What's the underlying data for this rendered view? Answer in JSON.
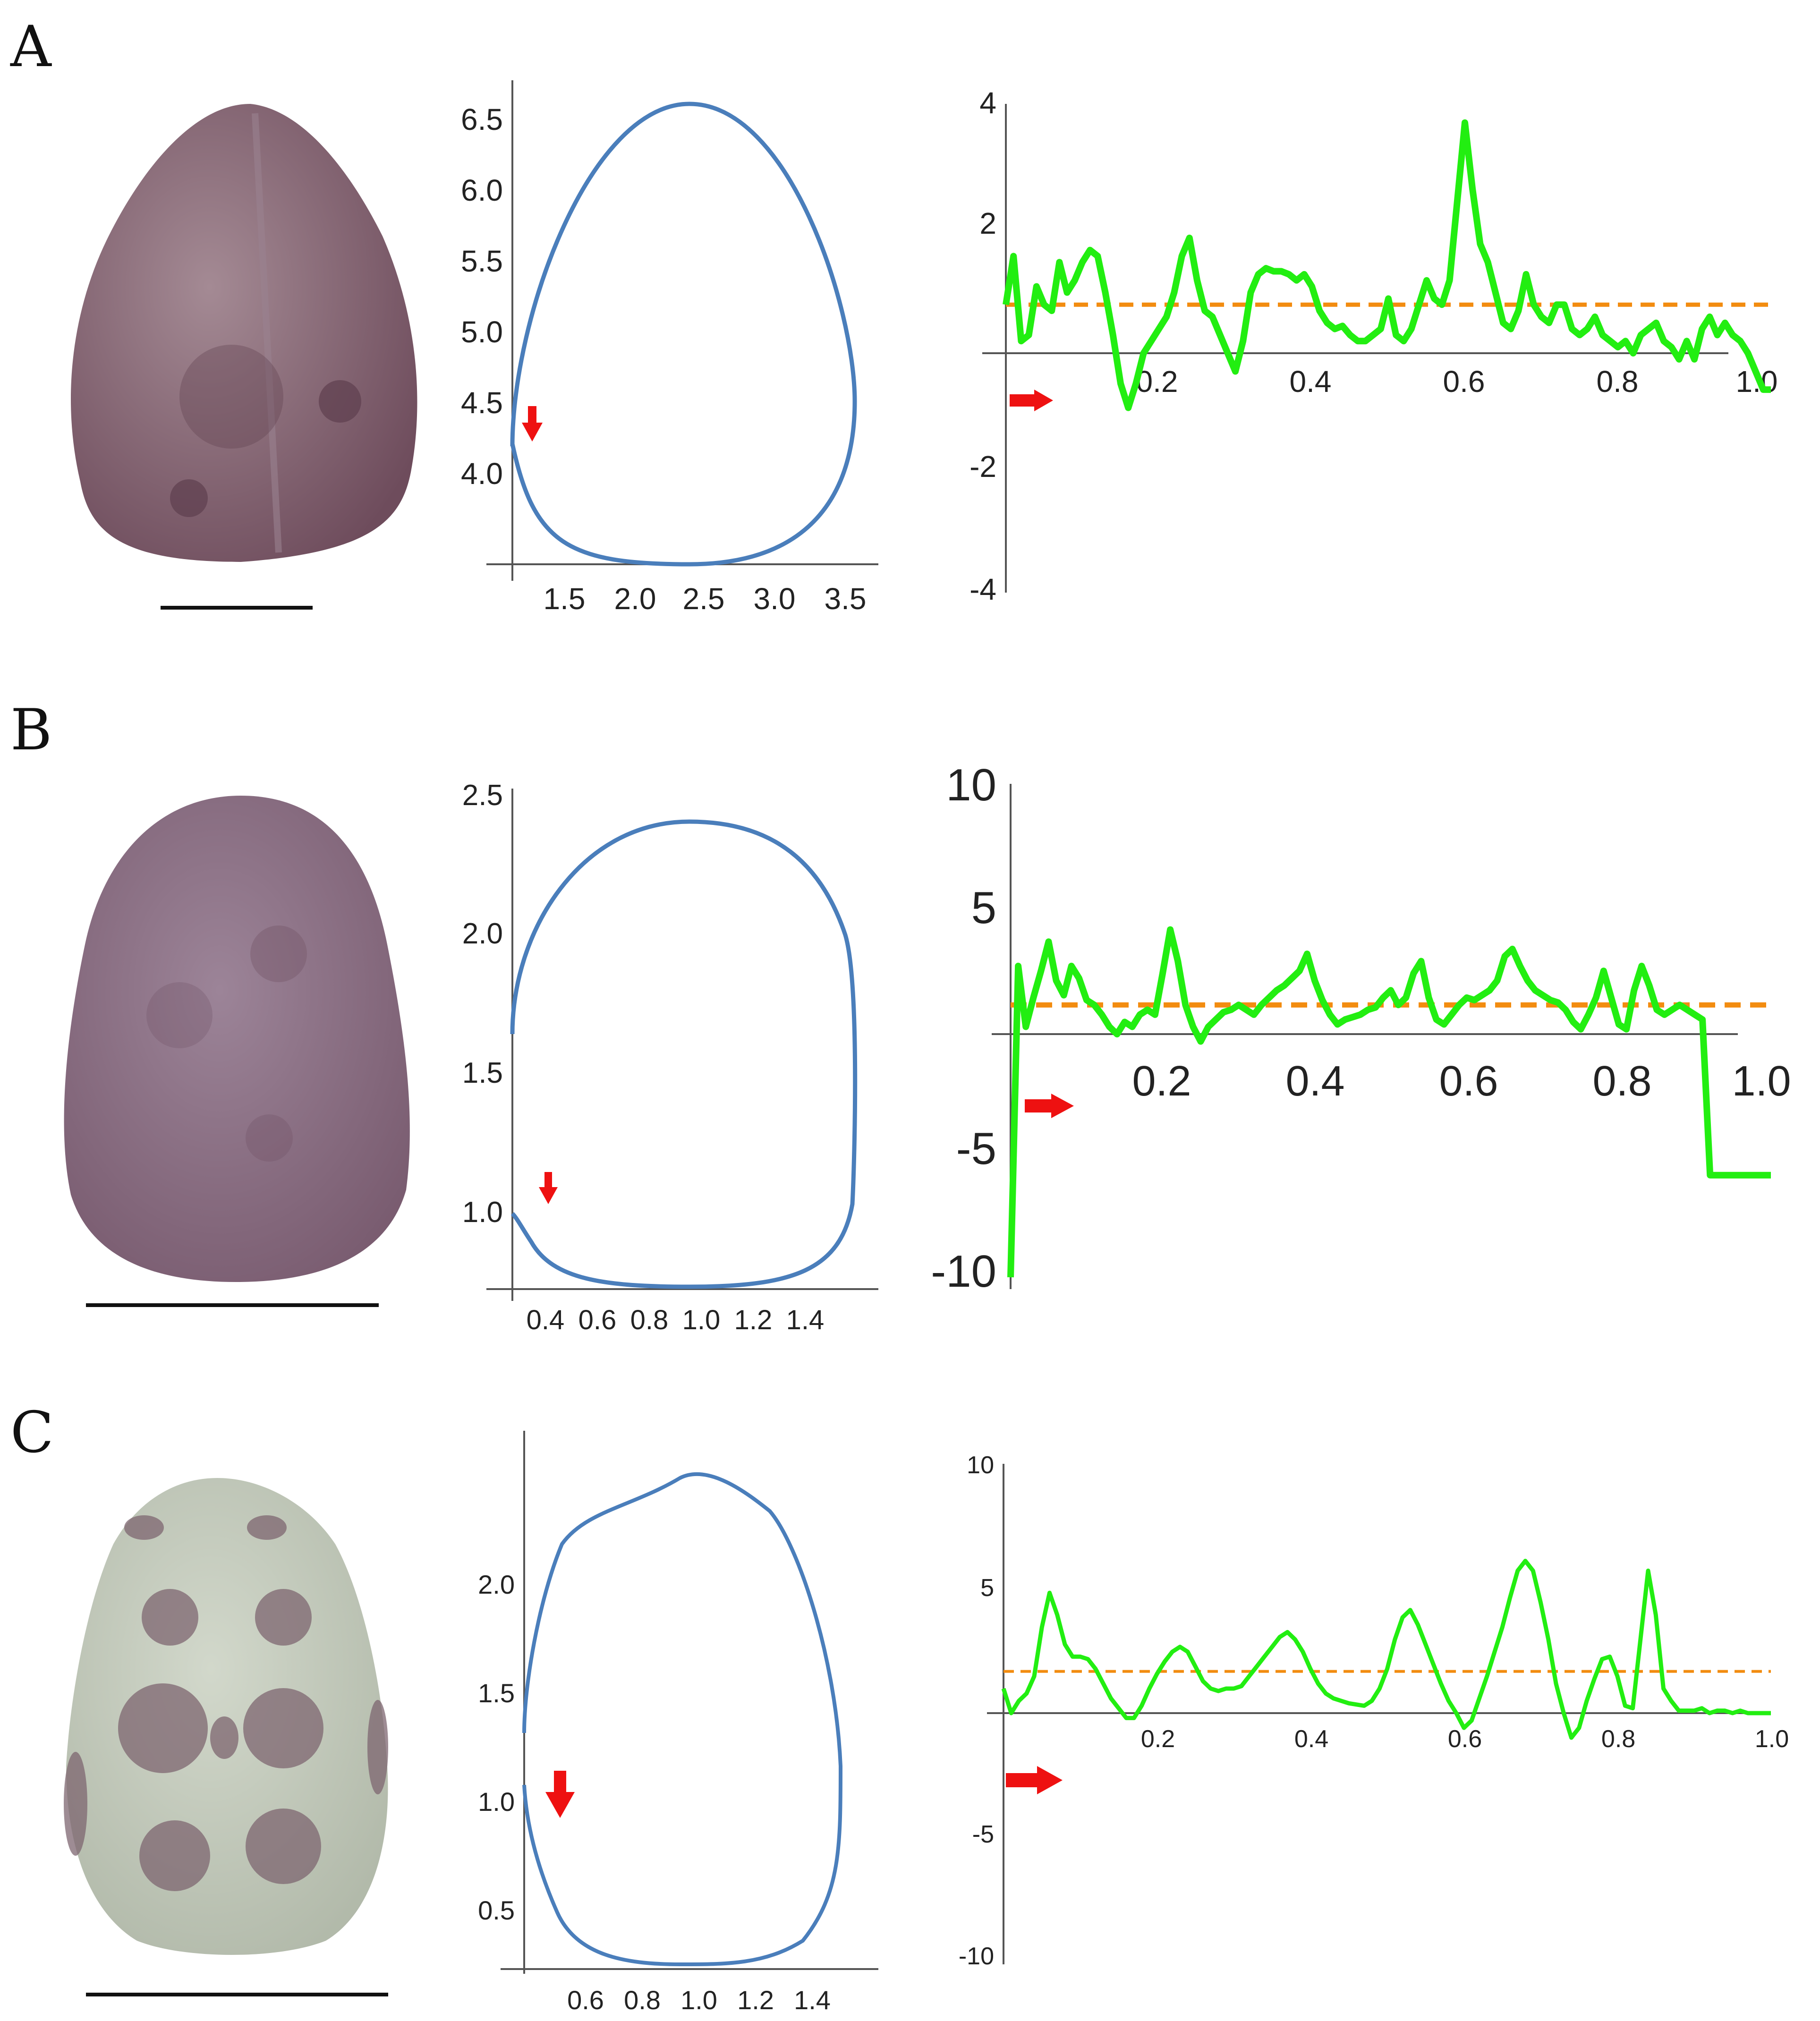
{
  "panels": [
    {
      "letter": "A",
      "seed": {
        "fill": "#8a6a78",
        "spot": "#5e3e4e"
      },
      "outline": {
        "xticks": [
          "1.5",
          "2.0",
          "2.5",
          "3.0",
          "3.5"
        ],
        "yticks": [
          "4.0",
          "4.5",
          "5.0",
          "5.5",
          "6.0",
          "6.5"
        ]
      },
      "profile": {
        "xticks": [
          "0.2",
          "0.4",
          "0.6",
          "0.8",
          "1.0"
        ],
        "yticks": [
          "-4",
          "-2",
          "2",
          "4"
        ],
        "ylim": [
          -4,
          4
        ]
      }
    },
    {
      "letter": "B",
      "seed": {
        "fill": "#8c7288",
        "spot": "#725467"
      },
      "outline": {
        "xticks": [
          "0.4",
          "0.6",
          "0.8",
          "1.0",
          "1.2",
          "1.4"
        ],
        "yticks": [
          "1.0",
          "1.5",
          "2.0",
          "2.5"
        ]
      },
      "profile": {
        "xticks": [
          "0.2",
          "0.4",
          "0.6",
          "0.8",
          "1.0"
        ],
        "yticks": [
          "-10",
          "-5",
          "5",
          "10"
        ],
        "ylim": [
          -10,
          10
        ]
      }
    },
    {
      "letter": "C",
      "seed": {
        "fill": "#c4cbbd",
        "spot": "#7e6670"
      },
      "outline": {
        "xticks": [
          "0.6",
          "0.8",
          "1.0",
          "1.2",
          "1.4"
        ],
        "yticks": [
          "0.5",
          "1.0",
          "1.5",
          "2.0"
        ]
      },
      "profile": {
        "xticks": [
          "0.2",
          "0.4",
          "0.6",
          "0.8",
          "1.0"
        ],
        "yticks": [
          "-10",
          "-5",
          "5",
          "10"
        ],
        "ylim": [
          -10,
          10
        ]
      }
    }
  ],
  "colors": {
    "outline": "#4a7ebb",
    "curvature": "#22ee11",
    "mean_line": "#f28c10",
    "arrow": "#ee1111",
    "axis": "#555555"
  },
  "chart_data": [
    {
      "type": "line",
      "panel": "A",
      "title": "",
      "xlabel": "",
      "ylabel": "",
      "xlim": [
        0,
        1
      ],
      "ylim": [
        -4,
        4
      ],
      "mean_line": 0.8,
      "series": [
        {
          "x": [
            0,
            0.01,
            0.02,
            0.03,
            0.04,
            0.05,
            0.06,
            0.07,
            0.08,
            0.09,
            0.1,
            0.11,
            0.12,
            0.13,
            0.14,
            0.15,
            0.16,
            0.17,
            0.18,
            0.19,
            0.2,
            0.21,
            0.22,
            0.23,
            0.24,
            0.25,
            0.26,
            0.27,
            0.28,
            0.29,
            0.3,
            0.31,
            0.32,
            0.33,
            0.34,
            0.35,
            0.36,
            0.37,
            0.38,
            0.39,
            0.4,
            0.41,
            0.42,
            0.43,
            0.44,
            0.45,
            0.46,
            0.47,
            0.48,
            0.49,
            0.5,
            0.51,
            0.52,
            0.53,
            0.54,
            0.55,
            0.56,
            0.57,
            0.58,
            0.59,
            0.6,
            0.61,
            0.62,
            0.63,
            0.64,
            0.65,
            0.66,
            0.67,
            0.68,
            0.69,
            0.7,
            0.71,
            0.72,
            0.73,
            0.74,
            0.75,
            0.76,
            0.77,
            0.78,
            0.79,
            0.8,
            0.81,
            0.82,
            0.83,
            0.84,
            0.85,
            0.86,
            0.87,
            0.88,
            0.89,
            0.9,
            0.91,
            0.92,
            0.93,
            0.94,
            0.95,
            0.96,
            0.97,
            0.98,
            0.99,
            1.0
          ],
          "y": [
            0.8,
            1.6,
            0.2,
            0.3,
            1.1,
            0.8,
            0.7,
            1.5,
            1.0,
            1.2,
            1.5,
            1.7,
            1.6,
            1.0,
            0.3,
            -0.5,
            -0.9,
            -0.5,
            0.0,
            0.2,
            0.4,
            0.6,
            1.0,
            1.6,
            1.9,
            1.2,
            0.7,
            0.6,
            0.3,
            0.0,
            -0.3,
            0.2,
            1.0,
            1.3,
            1.4,
            1.35,
            1.35,
            1.3,
            1.2,
            1.3,
            1.1,
            0.7,
            0.5,
            0.4,
            0.45,
            0.3,
            0.2,
            0.2,
            0.3,
            0.4,
            0.9,
            0.3,
            0.2,
            0.4,
            0.8,
            1.2,
            0.9,
            0.8,
            1.2,
            2.5,
            3.8,
            2.7,
            1.8,
            1.5,
            1.0,
            0.5,
            0.4,
            0.7,
            1.3,
            0.8,
            0.6,
            0.5,
            0.8,
            0.8,
            0.4,
            0.3,
            0.4,
            0.6,
            0.3,
            0.2,
            0.1,
            0.2,
            0.0,
            0.3,
            0.4,
            0.5,
            0.2,
            0.1,
            -0.1,
            0.2,
            -0.1,
            0.4,
            0.6,
            0.3,
            0.5,
            0.3,
            0.2,
            0.0,
            -0.3,
            -0.6,
            -0.6
          ]
        }
      ]
    },
    {
      "type": "line",
      "panel": "B",
      "title": "",
      "xlabel": "",
      "ylabel": "",
      "xlim": [
        0,
        1
      ],
      "ylim": [
        -10,
        10
      ],
      "mean_line": 1.2,
      "series": [
        {
          "x": [
            0,
            0.01,
            0.02,
            0.03,
            0.04,
            0.05,
            0.06,
            0.07,
            0.08,
            0.09,
            0.1,
            0.11,
            0.12,
            0.13,
            0.14,
            0.15,
            0.16,
            0.17,
            0.18,
            0.19,
            0.2,
            0.21,
            0.22,
            0.23,
            0.24,
            0.25,
            0.26,
            0.27,
            0.28,
            0.29,
            0.3,
            0.31,
            0.32,
            0.33,
            0.34,
            0.35,
            0.36,
            0.37,
            0.38,
            0.39,
            0.4,
            0.41,
            0.42,
            0.43,
            0.44,
            0.45,
            0.46,
            0.47,
            0.48,
            0.49,
            0.5,
            0.51,
            0.52,
            0.53,
            0.54,
            0.55,
            0.56,
            0.57,
            0.58,
            0.59,
            0.6,
            0.61,
            0.62,
            0.63,
            0.64,
            0.65,
            0.66,
            0.67,
            0.68,
            0.69,
            0.7,
            0.71,
            0.72,
            0.73,
            0.74,
            0.75,
            0.76,
            0.77,
            0.78,
            0.79,
            0.8,
            0.81,
            0.82,
            0.83,
            0.84,
            0.85,
            0.86,
            0.87,
            0.88,
            0.89,
            0.9,
            0.91,
            0.92,
            0.93,
            0.94,
            0.95,
            0.96,
            0.97,
            0.98,
            0.99,
            1.0
          ],
          "y": [
            -10,
            2.8,
            0.3,
            1.5,
            2.6,
            3.8,
            2.2,
            1.6,
            2.8,
            2.3,
            1.4,
            1.2,
            0.8,
            0.3,
            0.0,
            0.5,
            0.3,
            0.8,
            1.0,
            0.8,
            2.5,
            4.3,
            3.0,
            1.2,
            0.3,
            -0.3,
            0.3,
            0.6,
            0.9,
            1.0,
            1.2,
            1.0,
            0.8,
            1.2,
            1.5,
            1.8,
            2.0,
            2.3,
            2.6,
            3.3,
            2.2,
            1.4,
            0.8,
            0.4,
            0.6,
            0.7,
            0.8,
            1.0,
            1.1,
            1.5,
            1.8,
            1.2,
            1.5,
            2.5,
            3.0,
            1.5,
            0.6,
            0.4,
            0.8,
            1.2,
            1.5,
            1.4,
            1.6,
            1.8,
            2.2,
            3.2,
            3.5,
            2.8,
            2.2,
            1.8,
            1.6,
            1.4,
            1.3,
            1.0,
            0.5,
            0.2,
            0.8,
            1.5,
            2.6,
            1.5,
            0.4,
            0.2,
            1.8,
            2.8,
            2.0,
            1.0,
            0.8,
            1.0,
            1.2,
            1.0,
            0.8,
            0.6,
            -5.8,
            -5.8,
            -5.8,
            -5.8,
            -5.8,
            -5.8,
            -5.8,
            -5.8,
            -5.8
          ]
        }
      ]
    },
    {
      "type": "line",
      "panel": "C",
      "title": "",
      "xlabel": "",
      "ylabel": "",
      "xlim": [
        0,
        1
      ],
      "ylim": [
        -10,
        10
      ],
      "mean_line": 1.7,
      "series": [
        {
          "x": [
            0,
            0.01,
            0.02,
            0.03,
            0.04,
            0.05,
            0.06,
            0.07,
            0.08,
            0.09,
            0.1,
            0.11,
            0.12,
            0.13,
            0.14,
            0.15,
            0.16,
            0.17,
            0.18,
            0.19,
            0.2,
            0.21,
            0.22,
            0.23,
            0.24,
            0.25,
            0.26,
            0.27,
            0.28,
            0.29,
            0.3,
            0.31,
            0.32,
            0.33,
            0.34,
            0.35,
            0.36,
            0.37,
            0.38,
            0.39,
            0.4,
            0.41,
            0.42,
            0.43,
            0.44,
            0.45,
            0.46,
            0.47,
            0.48,
            0.49,
            0.5,
            0.51,
            0.52,
            0.53,
            0.54,
            0.55,
            0.56,
            0.57,
            0.58,
            0.59,
            0.6,
            0.61,
            0.62,
            0.63,
            0.64,
            0.65,
            0.66,
            0.67,
            0.68,
            0.69,
            0.7,
            0.71,
            0.72,
            0.73,
            0.74,
            0.75,
            0.76,
            0.77,
            0.78,
            0.79,
            0.8,
            0.81,
            0.82,
            0.83,
            0.84,
            0.85,
            0.86,
            0.87,
            0.88,
            0.89,
            0.9,
            0.91,
            0.92,
            0.93,
            0.94,
            0.95,
            0.96,
            0.97,
            0.98,
            0.99,
            1.0
          ],
          "y": [
            1.0,
            0.0,
            0.5,
            0.8,
            1.5,
            3.5,
            4.9,
            4.0,
            2.8,
            2.3,
            2.3,
            2.2,
            1.8,
            1.2,
            0.6,
            0.2,
            -0.2,
            -0.2,
            0.3,
            1.0,
            1.6,
            2.1,
            2.5,
            2.7,
            2.5,
            1.9,
            1.3,
            1.0,
            0.9,
            1.0,
            1.0,
            1.1,
            1.5,
            1.9,
            2.3,
            2.7,
            3.1,
            3.3,
            3.0,
            2.5,
            1.8,
            1.2,
            0.8,
            0.6,
            0.5,
            0.4,
            0.35,
            0.3,
            0.5,
            1.0,
            1.8,
            3.0,
            3.9,
            4.2,
            3.6,
            2.8,
            2.0,
            1.2,
            0.5,
            0.0,
            -0.6,
            -0.3,
            0.6,
            1.5,
            2.5,
            3.5,
            4.7,
            5.8,
            6.2,
            5.8,
            4.5,
            3.0,
            1.2,
            0.0,
            -1.0,
            -0.6,
            0.5,
            1.4,
            2.2,
            2.3,
            1.5,
            0.3,
            0.2,
            3.0,
            5.8,
            4.0,
            1.0,
            0.5,
            0.1,
            0.1,
            0.1,
            0.2,
            0.0,
            0.1,
            0.1,
            0.0,
            0.1,
            0.0,
            0.0,
            0.0,
            0.0
          ]
        }
      ]
    }
  ]
}
